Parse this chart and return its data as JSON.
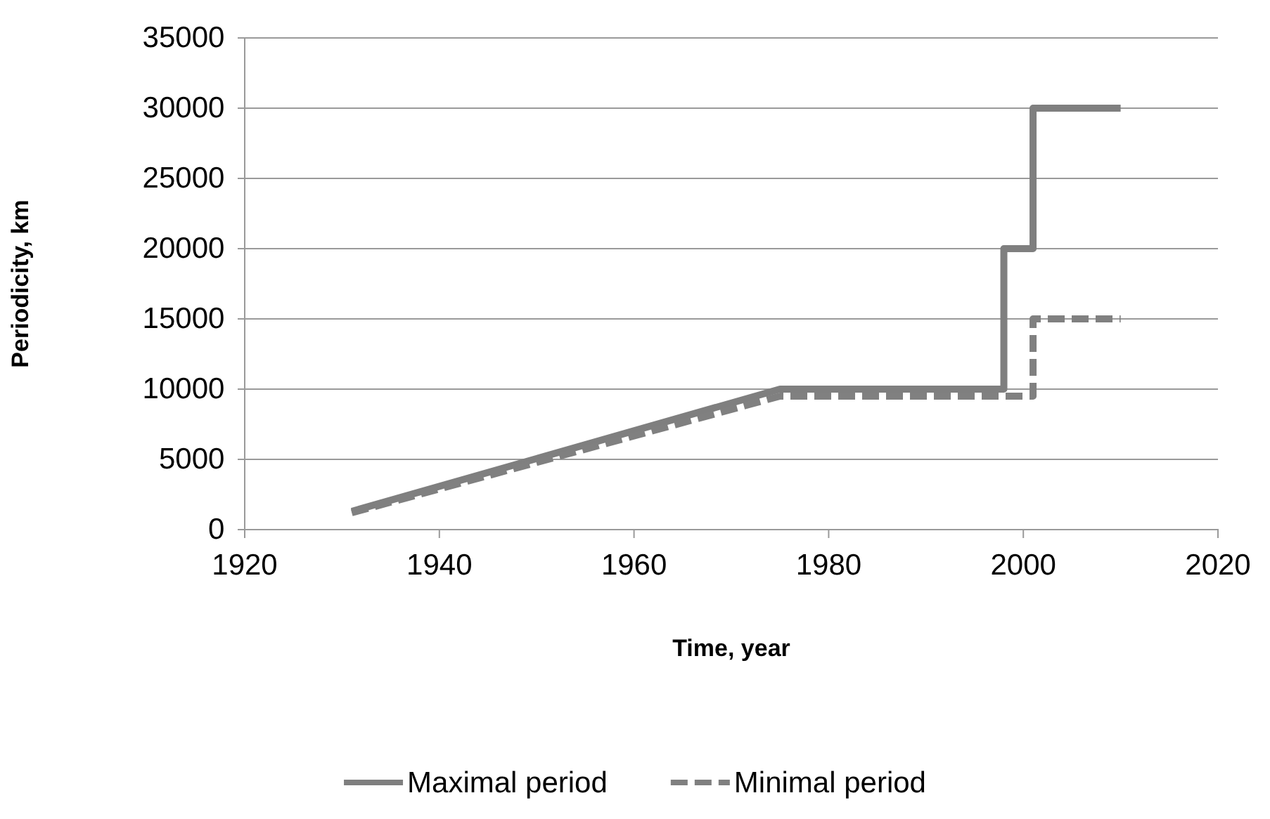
{
  "chart_data": {
    "type": "line",
    "xlabel": "Time, year",
    "ylabel": "Periodicity, km",
    "xlim": [
      1920,
      2020
    ],
    "xticks": [
      1920,
      1940,
      1960,
      1980,
      2000,
      2020
    ],
    "ylim": [
      0,
      35000
    ],
    "yticks": [
      0,
      5000,
      10000,
      15000,
      20000,
      25000,
      30000,
      35000
    ],
    "grid": "y",
    "legend": "bottom",
    "marker": "none",
    "series": [
      {
        "name": "Maximal period",
        "color": "#7f7f7f",
        "line_style": "solid",
        "x": [
          1931,
          1975,
          1998,
          1998,
          2001,
          2001,
          2010
        ],
        "values": [
          1300,
          10000,
          10000,
          20000,
          20000,
          30000,
          30000
        ]
      },
      {
        "name": "Minimal period",
        "color": "#808080",
        "line_style": "dashed",
        "x": [
          1931,
          1975,
          2001,
          2001,
          2010
        ],
        "values": [
          1200,
          9500,
          9500,
          15000,
          15000
        ]
      }
    ]
  }
}
